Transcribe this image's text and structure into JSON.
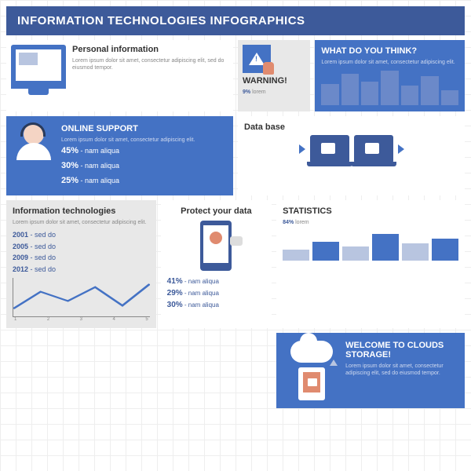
{
  "colors": {
    "primary": "#4472c4",
    "dark": "#3d5a9a",
    "accent": "#e08b6f",
    "gray": "#e8e8e8",
    "text": "#555",
    "muted": "#888",
    "barlight": "#b8c5e0"
  },
  "header": {
    "title": "INFORMATION TECHNOLOGIES INFOGRAPHICS"
  },
  "lorem": "Lorem ipsum dolor sit amet, consectetur adipiscing elit, sed do eiusmod tempor.",
  "lorem2": "Lorem ipsum dolor sit amet, consectetur adipiscing elit.",
  "personal": {
    "title": "Personal information"
  },
  "warning": {
    "title": "WARNING!",
    "pct": "9%",
    "suffix": "lorem"
  },
  "think": {
    "title": "WHAT DO YOU THINK?",
    "bars": [
      58,
      88,
      65,
      95,
      55,
      80,
      42
    ],
    "bar_color": "#6b89c9",
    "ylim": [
      0,
      100
    ]
  },
  "support": {
    "title": "ONLINE SUPPORT",
    "stats": [
      {
        "pct": "45%",
        "txt": "nam aliqua"
      },
      {
        "pct": "30%",
        "txt": "nam aliqua"
      },
      {
        "pct": "25%",
        "txt": "nam aliqua"
      }
    ]
  },
  "database": {
    "title": "Data base"
  },
  "infotech": {
    "title": "Information technologies",
    "years": [
      "2001",
      "2005",
      "2009",
      "2012"
    ],
    "year_suffix": "sed do",
    "line": {
      "points": [
        [
          0,
          40
        ],
        [
          20,
          18
        ],
        [
          40,
          30
        ],
        [
          60,
          12
        ],
        [
          80,
          36
        ],
        [
          100,
          8
        ]
      ],
      "color": "#4472c4",
      "width": 2,
      "xlabels": [
        "1",
        "2",
        "3",
        "4",
        "5"
      ]
    }
  },
  "protect": {
    "title": "Protect your data",
    "stats": [
      {
        "pct": "41%",
        "txt": "nam aliqua"
      },
      {
        "pct": "29%",
        "txt": "nam aliqua"
      },
      {
        "pct": "30%",
        "txt": "nam aliqua"
      }
    ]
  },
  "stats": {
    "title": "STATISTICS",
    "pct": "84%",
    "suffix": "lorem",
    "bars": [
      {
        "h": 35,
        "c": "#b8c5e0"
      },
      {
        "h": 60,
        "c": "#4472c4"
      },
      {
        "h": 45,
        "c": "#b8c5e0"
      },
      {
        "h": 85,
        "c": "#4472c4"
      },
      {
        "h": 55,
        "c": "#b8c5e0"
      },
      {
        "h": 70,
        "c": "#4472c4"
      }
    ]
  },
  "clouds": {
    "title": "WELCOME TO CLOUDS STORAGE!"
  }
}
